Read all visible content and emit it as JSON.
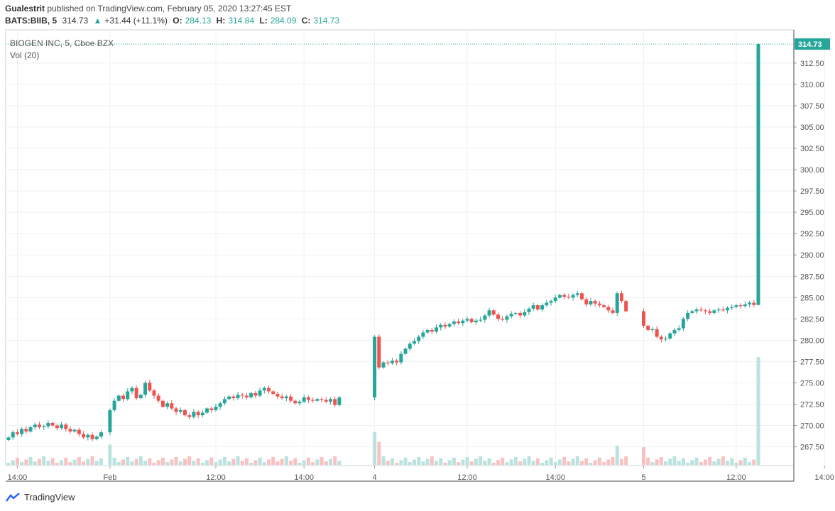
{
  "header": {
    "publisher": "Gualestrit",
    "published_text": "published on TradingView.com, February 05, 2020 13:27:45 EST",
    "symbol": "BATS:BIIB, 5",
    "last": "314.73",
    "change_arrow": "▲",
    "change": "+31.44 (+11.1%)",
    "o_label": "O:",
    "o_value": "284.13",
    "h_label": "H:",
    "h_value": "314.84",
    "l_label": "L:",
    "l_value": "284.09",
    "c_label": "C:",
    "c_value": "314.73"
  },
  "legend": {
    "series_title": "BIOGEN INC, 5, Cboe BZX",
    "volume_title": "Vol (20)"
  },
  "footer": {
    "brand": "TradingView"
  },
  "colors": {
    "up": "#26a69a",
    "down": "#ef5350",
    "grid": "#eef1f5"
  },
  "chart_data": {
    "type": "candlestick",
    "title": "BIOGEN INC, 5, Cboe BZX",
    "ylim": [
      265.3,
      316.4
    ],
    "y_ticks": [
      267.5,
      270.0,
      272.5,
      275.0,
      277.5,
      280.0,
      282.5,
      285.0,
      287.5,
      290.0,
      292.5,
      295.0,
      297.5,
      300.0,
      302.5,
      305.0,
      307.5,
      310.0,
      312.5
    ],
    "y_tick_labels": [
      "267.50",
      "270.00",
      "272.50",
      "275.00",
      "277.50",
      "280.00",
      "282.50",
      "285.00",
      "287.50",
      "290.00",
      "292.50",
      "295.00",
      "297.50",
      "300.00",
      "302.50",
      "305.00",
      "307.50",
      "310.00",
      "312.50"
    ],
    "last_price_label": "314.73",
    "last_price": 314.73,
    "x_tick_labels": [
      "14:00",
      "Feb",
      "12:00",
      "14:00",
      "4",
      "12:00",
      "14:00",
      "5",
      "12:00",
      "14:00"
    ],
    "x_tick_index": [
      2,
      23,
      47,
      67,
      83,
      104,
      124,
      144,
      165,
      185
    ],
    "sessions": [
      {
        "start": 0,
        "prices": [
          268.6,
          269.2,
          269.0,
          269.6,
          269.3,
          269.8,
          270.1,
          269.8,
          269.9,
          270.3,
          270.0,
          269.7,
          270.1,
          269.6,
          269.3,
          269.5,
          269.0,
          268.6,
          268.9,
          268.4,
          268.7,
          269.2
        ]
      },
      {
        "start": 23,
        "prices": [
          271.8,
          272.9,
          273.5,
          273.1,
          274.0,
          274.4,
          273.2,
          273.6,
          275.0,
          274.1,
          273.5,
          272.9,
          272.2,
          272.6,
          272.0,
          271.6,
          271.8,
          271.2,
          271.0,
          271.6,
          271.2,
          271.5,
          272.0,
          271.8,
          272.2,
          272.6,
          273.1,
          273.4,
          273.2,
          273.6,
          273.5,
          273.3,
          273.8,
          273.5,
          274.1,
          274.4,
          274.0,
          273.7,
          273.4,
          273.2,
          273.4,
          272.9,
          272.6,
          272.8,
          273.3,
          273.0,
          272.9,
          273.1,
          273.0,
          272.8,
          273.1,
          272.4,
          273.3
        ]
      },
      {
        "start": 83,
        "prices": [
          280.4,
          276.8,
          277.4,
          277.3,
          277.6,
          277.4,
          278.4,
          279.0,
          279.6,
          279.9,
          280.4,
          280.9,
          281.2,
          281.0,
          281.5,
          281.8,
          281.6,
          281.9,
          282.2,
          282.0,
          282.3,
          282.5,
          282.1,
          282.3,
          282.4,
          282.9,
          283.5,
          283.0,
          282.5,
          282.4,
          282.8,
          283.1,
          283.2,
          282.9,
          283.3,
          283.7,
          284.1,
          283.6,
          284.1,
          284.4,
          284.6,
          285.0,
          285.3,
          285.1,
          285.0,
          285.3,
          285.5,
          284.8,
          284.2,
          284.6,
          284.3,
          284.1,
          283.9,
          283.5,
          283.2,
          285.5,
          284.6,
          283.4
        ]
      },
      {
        "start": 144,
        "prices": [
          281.7,
          281.2,
          281.3,
          280.4,
          280.1,
          280.2,
          280.8,
          281.2,
          281.4,
          282.5,
          283.2,
          283.4,
          283.6,
          283.5,
          283.4,
          283.2,
          283.5,
          283.6,
          283.5,
          283.8,
          283.9,
          284.1,
          284.0,
          284.2,
          284.4,
          284.13
        ]
      },
      {
        "start": 170,
        "prices": [
          314.73
        ]
      }
    ],
    "total_bars": 171,
    "volume": {
      "label": "Vol (20)",
      "max_bar_index": 170,
      "relative_levels_note": "typical bars ~0.05-0.25 of the largest bar; the final bar is the largest"
    }
  }
}
